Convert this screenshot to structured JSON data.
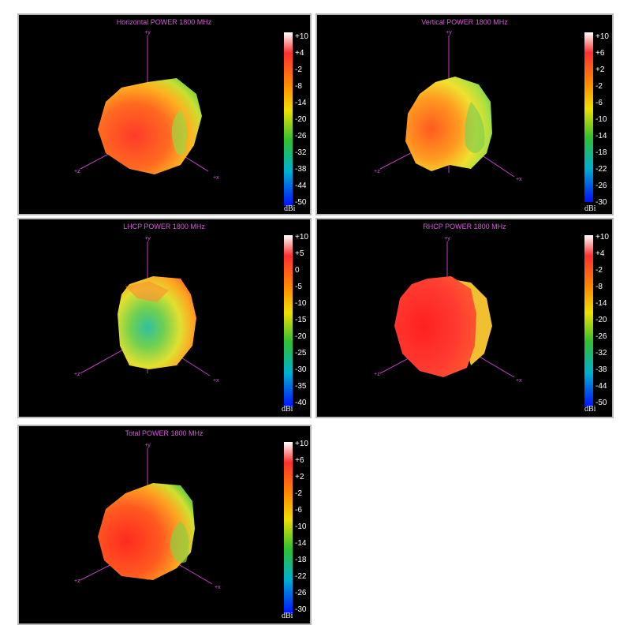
{
  "plots": [
    {
      "title": "Horizontal POWER 1800  MHz",
      "ticks": [
        "+10",
        "+4",
        "-2",
        "-8",
        "-14",
        "-20",
        "-26",
        "-32",
        "-38",
        "-44",
        "-50"
      ],
      "unit": "dBi",
      "axes": {
        "y": "+y",
        "x": "+x",
        "z": "+z"
      }
    },
    {
      "title": "Vertical POWER 1800  MHz",
      "ticks": [
        "+10",
        "+6",
        "+2",
        "-2",
        "-6",
        "-10",
        "-14",
        "-18",
        "-22",
        "-26",
        "-30"
      ],
      "unit": "dBi",
      "axes": {
        "y": "+y",
        "x": "+x",
        "z": "+z"
      }
    },
    {
      "title": "LHCP POWER 1800  MHz",
      "ticks": [
        "+10",
        "+5",
        "0",
        "-5",
        "-10",
        "-15",
        "-20",
        "-25",
        "-30",
        "-35",
        "-40"
      ],
      "unit": "dBi",
      "axes": {
        "y": "+y",
        "x": "+x",
        "z": "+z"
      }
    },
    {
      "title": "RHCP POWER 1800  MHz",
      "ticks": [
        "+10",
        "+4",
        "-2",
        "-8",
        "-14",
        "-20",
        "-26",
        "-32",
        "-38",
        "-44",
        "-50"
      ],
      "unit": "dBi",
      "axes": {
        "y": "+y",
        "x": "+x",
        "z": "+z"
      }
    },
    {
      "title": "Total POWER 1800  MHz",
      "ticks": [
        "+10",
        "+6",
        "+2",
        "-2",
        "-6",
        "-10",
        "-14",
        "-18",
        "-22",
        "-26",
        "-30"
      ],
      "unit": "dBi",
      "axes": {
        "y": "+y",
        "x": "+x",
        "z": "+z"
      }
    }
  ],
  "colors": {
    "background": "#000000",
    "axis": "#c040c0",
    "title": "#d65ad6",
    "border": "#b8b8b8"
  }
}
